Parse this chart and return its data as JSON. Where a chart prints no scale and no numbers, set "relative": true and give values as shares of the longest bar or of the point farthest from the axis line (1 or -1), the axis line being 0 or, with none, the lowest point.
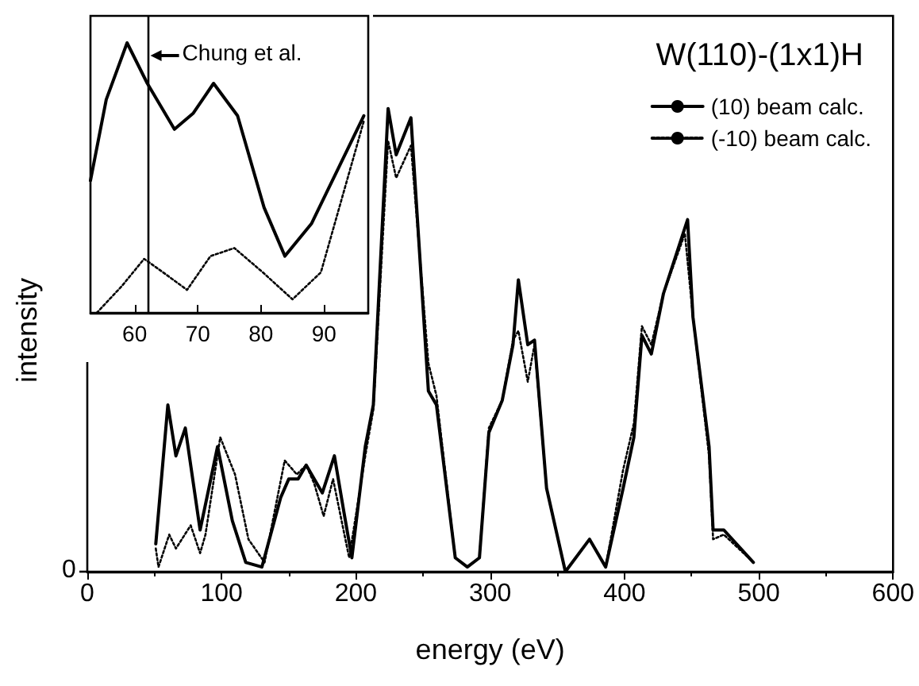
{
  "chart_data": [
    {
      "type": "line",
      "title": "W(110)-(1x1)H",
      "xlabel": "energy (eV)",
      "ylabel": "intensity",
      "relative": true,
      "xlim": [
        0,
        600
      ],
      "xticks": [
        0,
        100,
        200,
        300,
        400,
        500,
        600
      ],
      "legend": "top right",
      "grid": false,
      "marker": "none",
      "annotations": [
        "0"
      ],
      "series": [
        {
          "name": "(10) beam calc.",
          "color": "#000000",
          "line_style": "solid",
          "x": [
            51,
            60,
            66,
            73,
            84,
            97,
            108,
            118,
            130,
            144,
            150,
            157,
            163,
            175,
            184,
            191,
            197,
            207,
            213,
            224,
            230,
            241,
            254,
            260,
            274,
            283,
            292,
            299,
            309,
            317,
            321,
            328,
            333,
            342,
            356,
            374,
            386,
            399,
            407,
            413,
            420,
            429,
            447,
            451,
            463,
            466,
            474,
            496
          ],
          "values": [
            0.06,
            0.36,
            0.25,
            0.31,
            0.09,
            0.27,
            0.11,
            0.02,
            0.01,
            0.16,
            0.2,
            0.2,
            0.23,
            0.17,
            0.25,
            0.13,
            0.03,
            0.27,
            0.36,
            1.0,
            0.9,
            0.98,
            0.39,
            0.36,
            0.03,
            0.01,
            0.03,
            0.3,
            0.37,
            0.49,
            0.63,
            0.49,
            0.5,
            0.18,
            0.0,
            0.07,
            0.01,
            0.18,
            0.29,
            0.51,
            0.47,
            0.6,
            0.76,
            0.55,
            0.27,
            0.09,
            0.09,
            0.02
          ]
        },
        {
          "name": "(-10) beam calc.",
          "color": "#000000",
          "line_style": "dotted",
          "x": [
            51,
            53,
            61,
            66,
            77,
            84,
            88,
            99,
            110,
            120,
            132,
            147,
            156,
            163,
            169,
            176,
            183,
            195,
            207,
            213,
            224,
            230,
            241,
            254,
            260,
            274,
            283,
            292,
            299,
            309,
            317,
            321,
            328,
            333,
            342,
            356,
            374,
            386,
            399,
            407,
            413,
            420,
            429,
            445,
            451,
            463,
            466,
            474,
            496
          ],
          "values": [
            0.05,
            0.01,
            0.08,
            0.05,
            0.1,
            0.04,
            0.08,
            0.29,
            0.21,
            0.07,
            0.02,
            0.24,
            0.21,
            0.23,
            0.19,
            0.12,
            0.2,
            0.03,
            0.25,
            0.35,
            0.93,
            0.85,
            0.92,
            0.45,
            0.38,
            0.03,
            0.01,
            0.03,
            0.31,
            0.37,
            0.5,
            0.52,
            0.41,
            0.49,
            0.18,
            0.0,
            0.07,
            0.01,
            0.22,
            0.32,
            0.53,
            0.49,
            0.6,
            0.73,
            0.55,
            0.25,
            0.07,
            0.08,
            0.02
          ]
        }
      ]
    },
    {
      "type": "line",
      "relative": true,
      "xlim": [
        53,
        97
      ],
      "xticks": [
        60,
        70,
        80,
        90
      ],
      "grid": false,
      "marker": "none",
      "ref_lines": [
        {
          "axis": "x",
          "value": 62,
          "label": "Chung et al."
        }
      ],
      "series": [
        {
          "color": "#000000",
          "line_style": "solid",
          "x": [
            53,
            55.5,
            58.8,
            62,
            66.3,
            69.3,
            72.5,
            76.3,
            80.5,
            83.8,
            88,
            96.3
          ],
          "values": [
            0.49,
            0.79,
            1.0,
            0.85,
            0.68,
            0.74,
            0.85,
            0.73,
            0.39,
            0.21,
            0.33,
            0.73
          ]
        },
        {
          "color": "#000000",
          "line_style": "dotted",
          "x": [
            54,
            58,
            61.5,
            64.5,
            68.3,
            72,
            75.8,
            80.3,
            85,
            89.5,
            96.3
          ],
          "values": [
            0.0,
            0.1,
            0.2,
            0.15,
            0.085,
            0.21,
            0.24,
            0.15,
            0.05,
            0.15,
            0.71
          ]
        }
      ]
    }
  ]
}
